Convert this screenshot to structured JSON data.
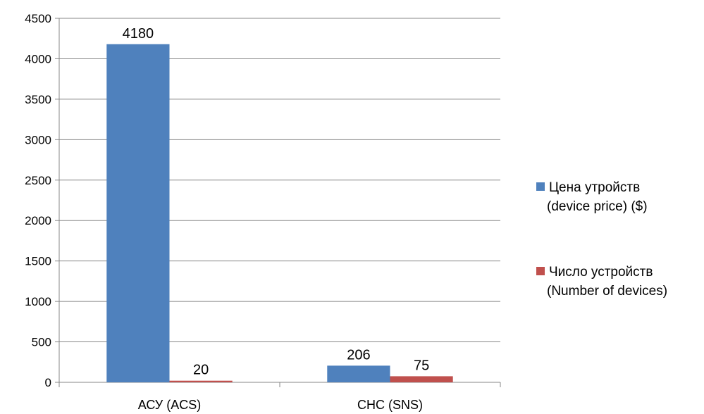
{
  "chart_data": {
    "type": "bar",
    "categories": [
      "АСУ (ACS)",
      "СНС (SNS)"
    ],
    "series": [
      {
        "name_lines": [
          "Цена утройств",
          "(device price) ($)"
        ],
        "values": [
          4180,
          206
        ],
        "color": "#4f81bd"
      },
      {
        "name_lines": [
          "Число устройств",
          "(Number of devices)"
        ],
        "values": [
          20,
          75
        ],
        "color": "#c0504d"
      }
    ],
    "data_labels": [
      [
        "4180",
        "206"
      ],
      [
        "20",
        "75"
      ]
    ],
    "yticks": [
      0,
      500,
      1000,
      1500,
      2000,
      2500,
      3000,
      3500,
      4000,
      4500
    ],
    "ylim": [
      0,
      4500
    ],
    "grid": true,
    "legend": "right"
  }
}
